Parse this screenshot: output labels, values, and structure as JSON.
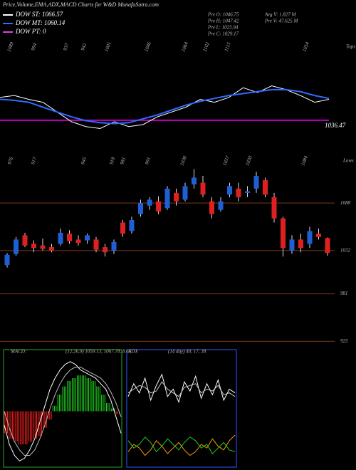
{
  "header": {
    "title": "Price,Volume,EMA,ADX,MACD Charts for W&D MunafaSutra.com",
    "legend": [
      {
        "label": "DOW ST: 1066.57",
        "color": "#ffffff"
      },
      {
        "label": "DOW MT: 1060.14",
        "color": "#2f6bff"
      },
      {
        "label": "DOW PT: 0",
        "color": "#e040e0"
      }
    ],
    "info": [
      "Pre  O: 1046.75",
      "Pre  H: 1047.42",
      "Pre  L: 1025.94",
      "Pre  C: 1029.17",
      "Avg V: 1.827 M",
      "Pre  V: 47.625 M"
    ]
  },
  "chart_data": [
    {
      "type": "line",
      "ylim": [
        1010,
        1120
      ],
      "level": 1036.47,
      "level_color": "#c000c0",
      "tops_label": "Tops",
      "lows_label": "Lows",
      "tops": [
        1089,
        994,
        937,
        942,
        1001,
        1046,
        1064,
        1102,
        1115,
        1054
      ],
      "lows": [
        976,
        917,
        945,
        918,
        981,
        991,
        1038,
        1037,
        1030,
        1084
      ],
      "series": [
        {
          "color": "#ffffff",
          "values": [
            1060,
            1062,
            1058,
            1055,
            1045,
            1035,
            1030,
            1028,
            1035,
            1030,
            1032,
            1040,
            1045,
            1050,
            1058,
            1055,
            1060,
            1070,
            1065,
            1072,
            1068,
            1062,
            1055,
            1058
          ]
        },
        {
          "color": "#2f6bff",
          "values": [
            1058,
            1057,
            1055,
            1050,
            1045,
            1040,
            1036,
            1034,
            1033,
            1034,
            1038,
            1042,
            1047,
            1052,
            1056,
            1059,
            1062,
            1064,
            1066,
            1068,
            1068,
            1066,
            1062,
            1059
          ]
        }
      ]
    },
    {
      "type": "candlestick",
      "ylim": [
        916,
        1136
      ],
      "yticks": [
        1088,
        1032,
        981,
        925
      ],
      "grid_color": "#7a3a1a",
      "up_color": "#1e5fd6",
      "down_color": "#e02020",
      "open": [
        1015,
        1028,
        1050,
        1040,
        1038,
        1036,
        1040,
        1052,
        1045,
        1044,
        1045,
        1036,
        1032,
        1065,
        1055,
        1075,
        1085,
        1090,
        1082,
        1100,
        1092,
        1110,
        1112,
        1090,
        1080,
        1098,
        1105,
        1100,
        1105,
        1115,
        1095,
        1070,
        1032,
        1045,
        1040,
        1052,
        1046.75
      ],
      "high": [
        1029,
        1048,
        1053,
        1044,
        1046,
        1040,
        1058,
        1056,
        1050,
        1052,
        1048,
        1040,
        1045,
        1068,
        1072,
        1092,
        1095,
        1096,
        1108,
        1105,
        1112,
        1128,
        1120,
        1095,
        1095,
        1112,
        1112,
        1108,
        1125,
        1118,
        1100,
        1072,
        1050,
        1052,
        1060,
        1058,
        1047.42
      ],
      "low": [
        1012,
        1026,
        1036,
        1030,
        1032,
        1030,
        1038,
        1040,
        1038,
        1040,
        1030,
        1025,
        1028,
        1048,
        1052,
        1072,
        1080,
        1075,
        1080,
        1085,
        1090,
        1105,
        1095,
        1070,
        1078,
        1095,
        1090,
        1095,
        1100,
        1095,
        1065,
        1025,
        1028,
        1030,
        1035,
        1045,
        1025.94
      ],
      "close": [
        1027,
        1045,
        1038,
        1035,
        1034,
        1032,
        1053,
        1043,
        1041,
        1050,
        1033,
        1030,
        1042,
        1052,
        1068,
        1088,
        1092,
        1078,
        1105,
        1090,
        1108,
        1118,
        1098,
        1075,
        1090,
        1108,
        1095,
        1102,
        1120,
        1098,
        1070,
        1035,
        1045,
        1035,
        1055,
        1048,
        1029.17
      ]
    },
    {
      "type": "macd",
      "title": "MACD:",
      "params": "(12,26,9) 1059.13, 1067.78, 8.66",
      "ylim": [
        -20,
        20
      ],
      "histogram": [
        -8,
        -10,
        -11,
        -12,
        -12,
        -11,
        -10,
        -9,
        -6,
        -3,
        2,
        6,
        9,
        11,
        12,
        13,
        13,
        12,
        11,
        9,
        6,
        3,
        1,
        -1
      ],
      "pos_color": "#22dd22",
      "neg_color": "#ff2020",
      "series": [
        {
          "color": "#ffffff",
          "values": [
            -5,
            -12,
            -16,
            -18,
            -17,
            -14,
            -10,
            -4,
            2,
            8,
            12,
            15,
            17,
            18,
            17,
            15,
            14,
            13,
            12,
            10,
            8,
            4,
            -2,
            -8
          ]
        },
        {
          "color": "#bbbbbb",
          "values": [
            0,
            -6,
            -11,
            -14,
            -16,
            -16,
            -14,
            -10,
            -5,
            1,
            6,
            10,
            13,
            15,
            16,
            16,
            15,
            14,
            13,
            12,
            10,
            7,
            3,
            -2
          ]
        }
      ]
    },
    {
      "type": "adx",
      "title": "ADX",
      "params": "(14 day) 40, 17, 38",
      "ylim": [
        0,
        60
      ],
      "series": [
        {
          "color": "#ffffff",
          "values": [
            38,
            45,
            40,
            48,
            36,
            44,
            50,
            38,
            42,
            35,
            46,
            41,
            49,
            37,
            45,
            39,
            47,
            36,
            42,
            40
          ]
        },
        {
          "color": "#cccccc",
          "values": [
            40,
            42,
            44,
            43,
            40,
            41,
            46,
            42,
            40,
            38,
            43,
            44,
            45,
            40,
            42,
            41,
            44,
            39,
            40,
            38
          ]
        },
        {
          "color": "#ff9900",
          "values": [
            8,
            12,
            10,
            6,
            9,
            14,
            11,
            7,
            10,
            13,
            9,
            6,
            8,
            12,
            10,
            15,
            11,
            9,
            14,
            17
          ]
        },
        {
          "color": "#22cc22",
          "values": [
            14,
            10,
            12,
            16,
            13,
            8,
            11,
            15,
            12,
            9,
            13,
            16,
            14,
            10,
            12,
            7,
            10,
            13,
            9,
            8
          ]
        }
      ]
    }
  ]
}
